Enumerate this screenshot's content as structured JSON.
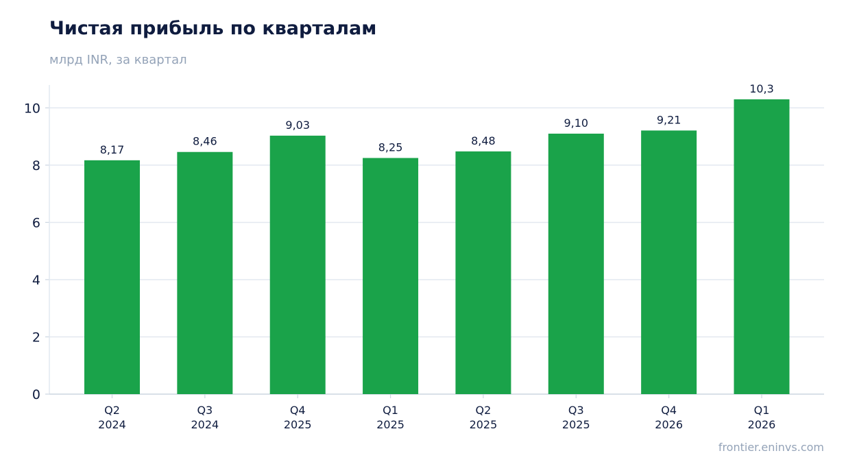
{
  "chart_data": {
    "type": "bar",
    "title": "Чистая прибыль по кварталам",
    "subtitle": "млрд INR, за квартал",
    "source": "frontier.eninvs.com",
    "categories": [
      [
        "Q2",
        "2024"
      ],
      [
        "Q3",
        "2024"
      ],
      [
        "Q4",
        "2025"
      ],
      [
        "Q1",
        "2025"
      ],
      [
        "Q2",
        "2025"
      ],
      [
        "Q3",
        "2025"
      ],
      [
        "Q4",
        "2026"
      ],
      [
        "Q1",
        "2026"
      ]
    ],
    "values": [
      8.17,
      8.46,
      9.03,
      8.25,
      8.48,
      9.1,
      9.21,
      10.3
    ],
    "value_labels": [
      "8,17",
      "8,46",
      "9,03",
      "8,25",
      "8,48",
      "9,10",
      "9,21",
      "10,3"
    ],
    "yticks": [
      0,
      2,
      4,
      6,
      8,
      10
    ],
    "ylim": [
      0,
      10.8
    ],
    "grid": true,
    "colors": {
      "bar": "#1aa34a",
      "grid": "#e2e8f0",
      "axis": "#cbd5e1",
      "text": "#0f1c3f",
      "muted": "#94a3b8"
    }
  }
}
